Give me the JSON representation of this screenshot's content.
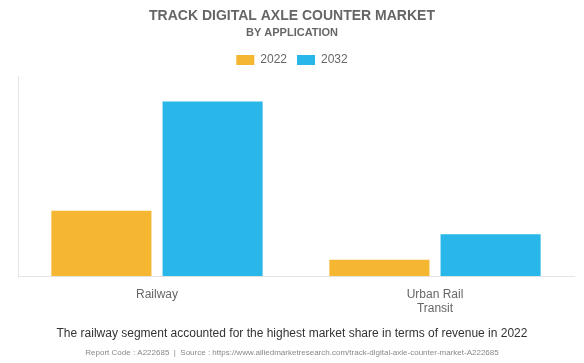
{
  "chart_data": {
    "type": "bar",
    "title": "TRACK DIGITAL AXLE COUNTER MARKET",
    "subtitle": "BY APPLICATION",
    "categories": [
      "Railway",
      "Urban Rail\nTransit"
    ],
    "series": [
      {
        "name": "2022",
        "color": "#F5B731",
        "values": [
          1.8,
          0.45
        ]
      },
      {
        "name": "2032",
        "color": "#29B6E8",
        "values": [
          4.8,
          1.15
        ]
      }
    ],
    "ylim": [
      0,
      5.5
    ],
    "grid": false,
    "legend": "top",
    "tick_labels": "x",
    "annotations": [
      "The railway segment accounted for the highest market share in terms of revenue in 2022",
      "Report Code : A222685  |  Source : https://www.alliedmarketresearch.com/track-digital-axle-counter-market-A222685"
    ]
  }
}
